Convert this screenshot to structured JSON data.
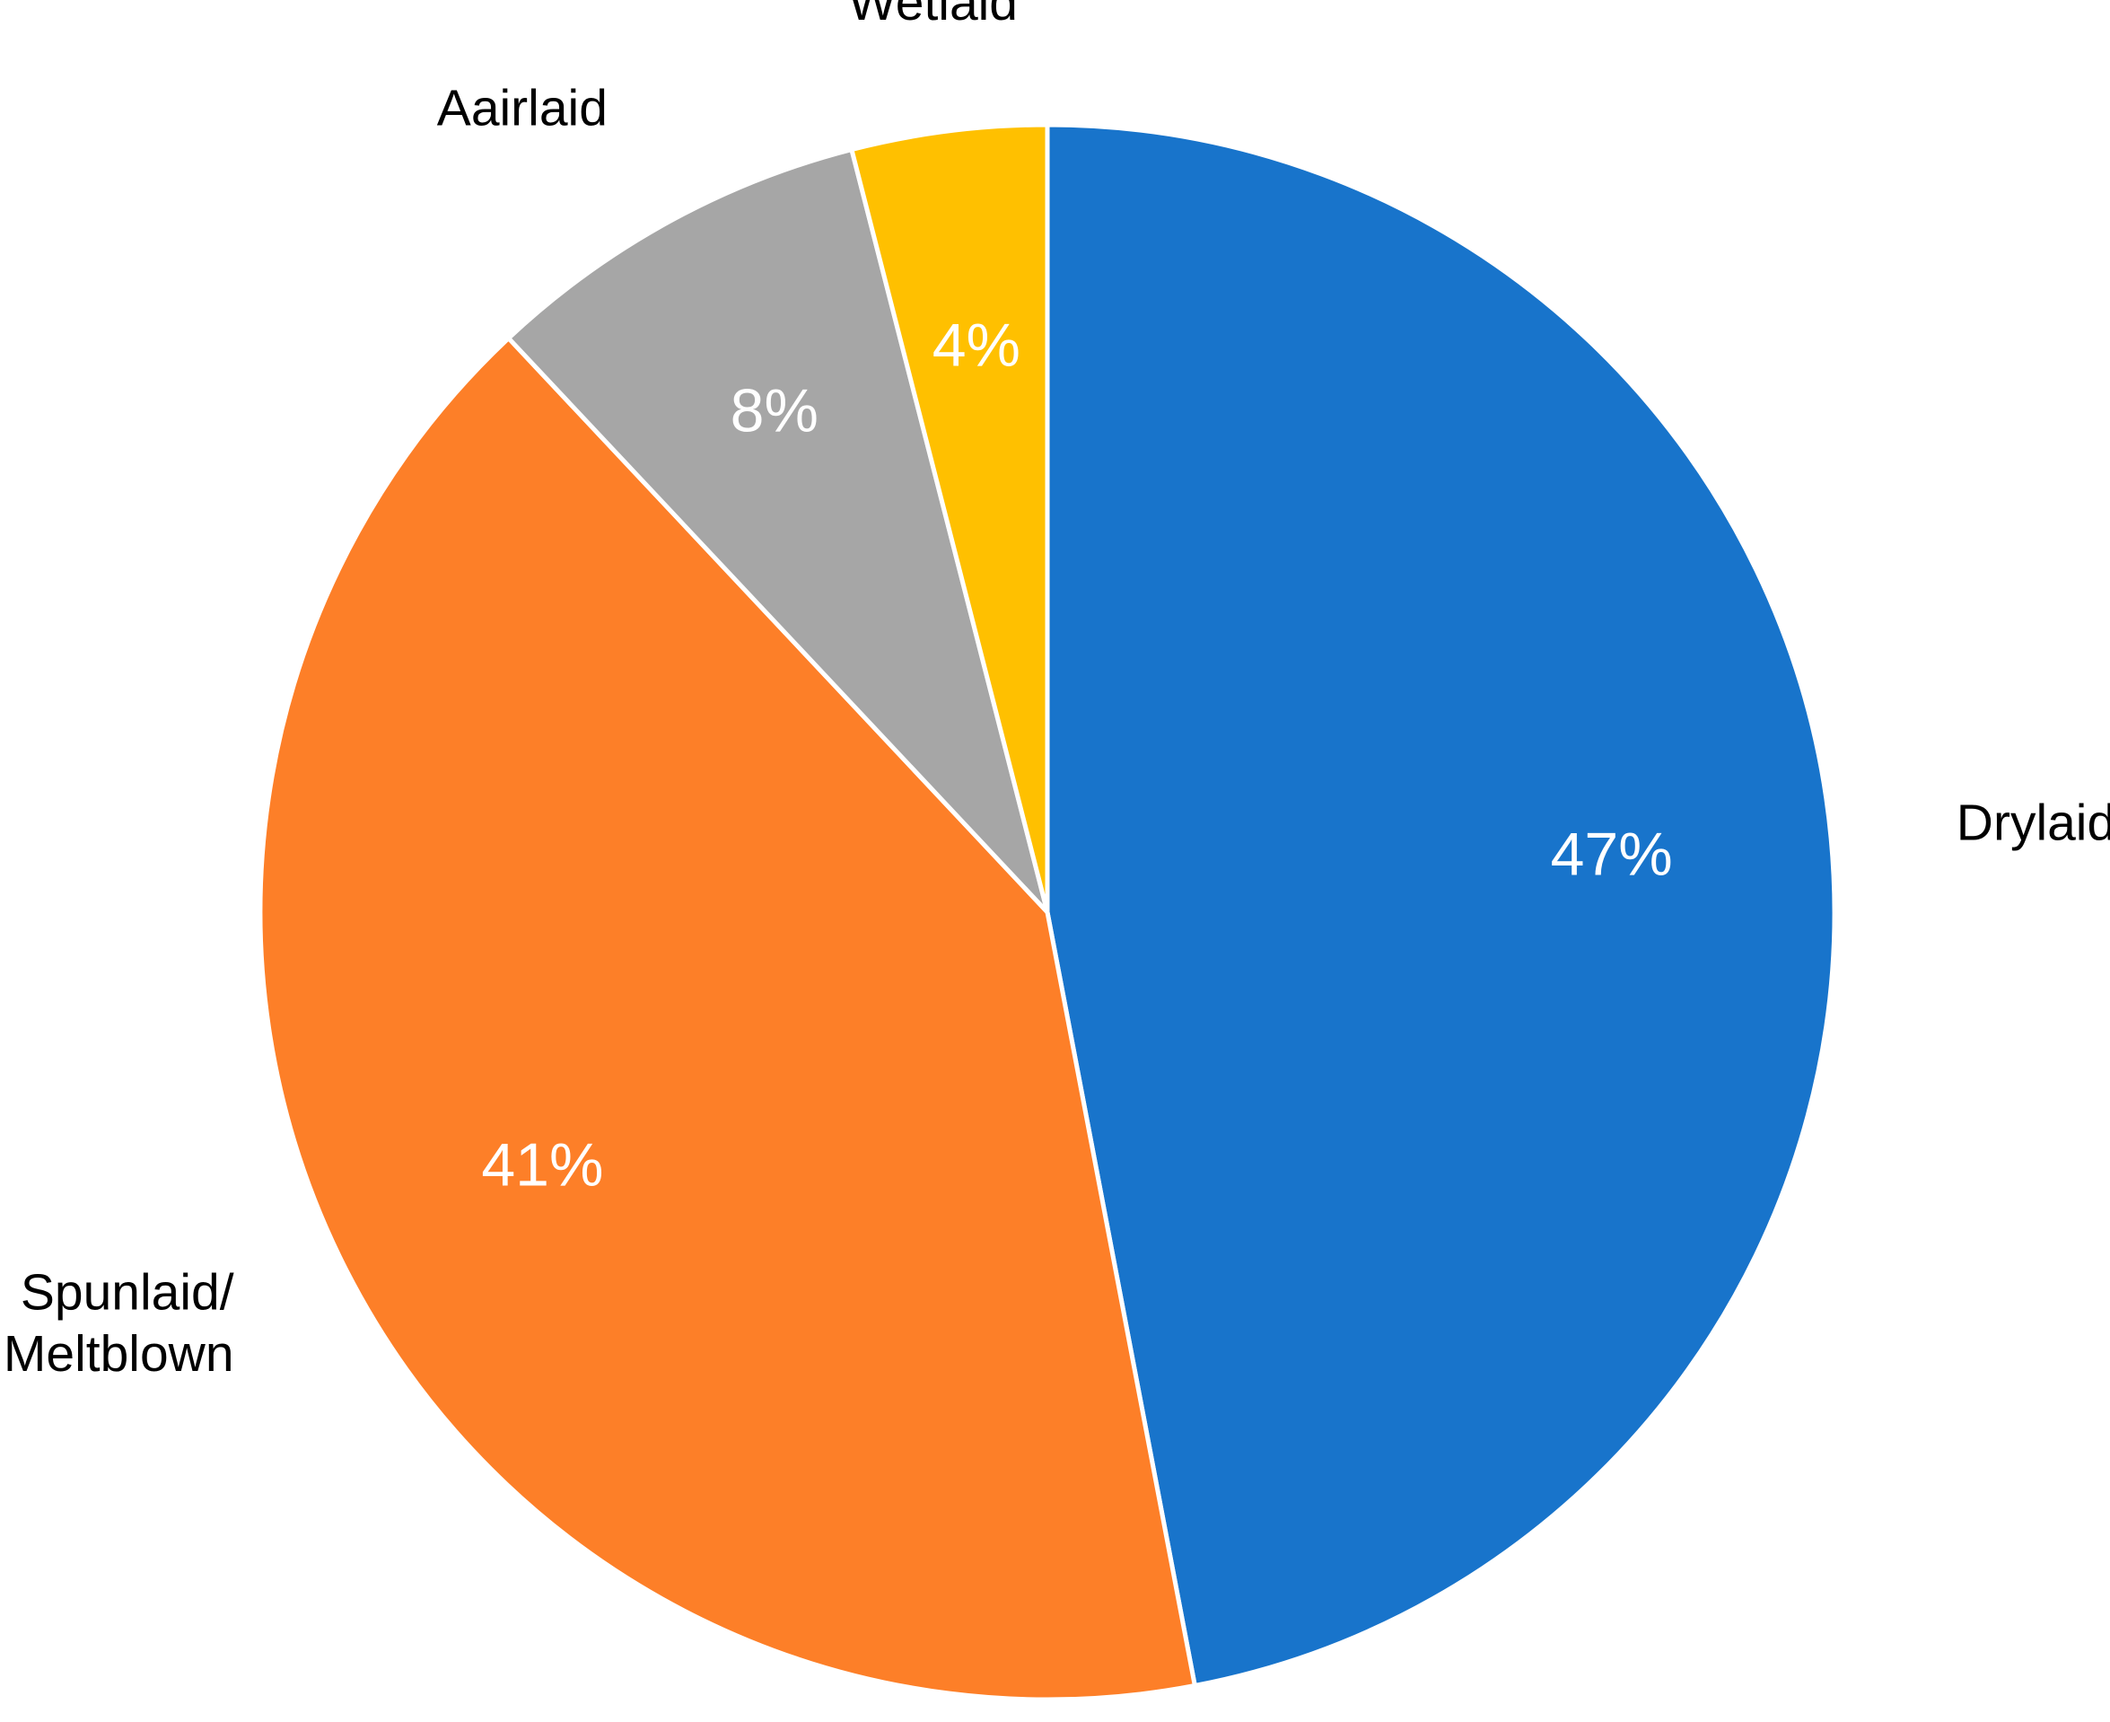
{
  "chart_data": {
    "type": "pie",
    "categories": [
      "Drylaid",
      "Spunlaid/ Meltblown",
      "Aairlaid",
      "Wetlaid"
    ],
    "values": [
      47,
      41,
      8,
      4
    ],
    "value_labels": [
      "47%",
      "41%",
      "8%",
      "4%"
    ],
    "colors": [
      "#1874cb",
      "#fd7f28",
      "#a6a6a6",
      "#ffc000"
    ]
  }
}
